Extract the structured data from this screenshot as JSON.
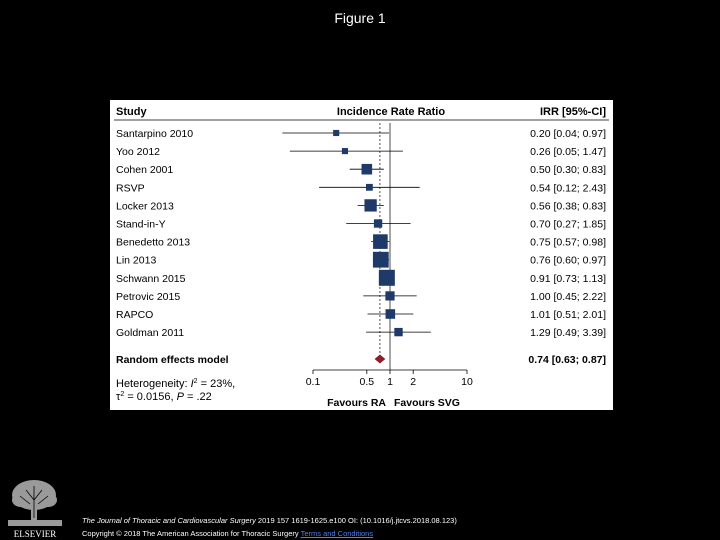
{
  "page": {
    "title": "Figure 1",
    "publisher_logo_text": "ELSEVIER",
    "citation_journal": "The Journal of Thoracic and Cardiovascular Surgery",
    "citation_details": " 2019 157 1619-1625.e100 OI: (10.1016/j.jtcvs.2018.08.123)",
    "copyright": "Copyright © 2018 The American Association for Thoracic Surgery",
    "terms_link": "Terms and Conditions"
  },
  "chart_data": {
    "type": "forest",
    "columns": {
      "study": "Study",
      "plot": "Incidence Rate Ratio",
      "ci": "IRR [95%-CI]"
    },
    "scale": "log",
    "xlim": [
      0.1,
      10
    ],
    "xticks": [
      0.1,
      0.5,
      1,
      2,
      10
    ],
    "tick_labels": [
      "0.1",
      "0.5",
      "1",
      "2",
      "10"
    ],
    "xlabel_left": "Favours RA",
    "xlabel_right": "Favours SVG",
    "pooled_ref": 0.74,
    "colors": {
      "marker": "#1f3a68",
      "diamond": "#8c1f2e",
      "line": "#000000"
    },
    "studies": [
      {
        "name": "Santarpino 2010",
        "irr": 0.2,
        "lo": 0.04,
        "hi": 0.97,
        "ci_text": "0.20 [0.04; 0.97]",
        "weight": 1
      },
      {
        "name": "Yoo 2012",
        "irr": 0.26,
        "lo": 0.05,
        "hi": 1.47,
        "ci_text": "0.26 [0.05; 1.47]",
        "weight": 1
      },
      {
        "name": "Cohen 2001",
        "irr": 0.5,
        "lo": 0.3,
        "hi": 0.83,
        "ci_text": "0.50 [0.30; 0.83]",
        "weight": 6
      },
      {
        "name": "RSVP",
        "irr": 0.54,
        "lo": 0.12,
        "hi": 2.43,
        "ci_text": "0.54 [0.12; 2.43]",
        "weight": 1.5
      },
      {
        "name": "Locker 2013",
        "irr": 0.56,
        "lo": 0.38,
        "hi": 0.83,
        "ci_text": "0.56 [0.38; 0.83]",
        "weight": 9
      },
      {
        "name": "Stand-in-Y",
        "irr": 0.7,
        "lo": 0.27,
        "hi": 1.85,
        "ci_text": "0.70 [0.27; 1.85]",
        "weight": 3
      },
      {
        "name": "Benedetto 2013",
        "irr": 0.75,
        "lo": 0.57,
        "hi": 0.98,
        "ci_text": "0.75 [0.57; 0.98]",
        "weight": 14
      },
      {
        "name": "Lin 2013",
        "irr": 0.76,
        "lo": 0.6,
        "hi": 0.97,
        "ci_text": "0.76 [0.60; 0.97]",
        "weight": 17
      },
      {
        "name": "Schwann 2015",
        "irr": 0.91,
        "lo": 0.73,
        "hi": 1.13,
        "ci_text": "0.91 [0.73; 1.13]",
        "weight": 18
      },
      {
        "name": "Petrovic 2015",
        "irr": 1.0,
        "lo": 0.45,
        "hi": 2.22,
        "ci_text": "1.00 [0.45; 2.22]",
        "weight": 4
      },
      {
        "name": "RAPCO",
        "irr": 1.01,
        "lo": 0.51,
        "hi": 2.01,
        "ci_text": "1.01 [0.51; 2.01]",
        "weight": 4.5
      },
      {
        "name": "Goldman 2011",
        "irr": 1.29,
        "lo": 0.49,
        "hi": 3.39,
        "ci_text": "1.29 [0.49; 3.39]",
        "weight": 3
      }
    ],
    "summary": {
      "name": "Random effects model",
      "irr": 0.74,
      "lo": 0.63,
      "hi": 0.87,
      "ci_text": "0.74 [0.63; 0.87]"
    },
    "heterogeneity": {
      "prefix": "Heterogeneity: ",
      "i2_symbol": "I",
      "i2_sup": "2",
      "i2_value": " = 23%,",
      "tau_symbol": "τ",
      "tau_sup": "2",
      "tau_value": " = 0.0156, ",
      "p_symbol": "P",
      "p_value": " = .22"
    }
  }
}
